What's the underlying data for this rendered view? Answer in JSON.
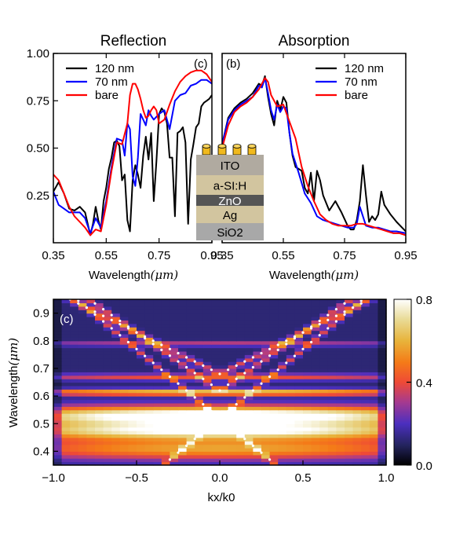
{
  "chart_data": [
    {
      "panel": "reflection",
      "type": "line",
      "title": "Reflection",
      "panel_label": "(c)",
      "xlabel": "Wavelength",
      "xlabel_unit": "(μm)",
      "xlim": [
        0.35,
        0.95
      ],
      "ylim": [
        0,
        1.0
      ],
      "xticks": [
        "0.35",
        "0.55",
        "0.75",
        "0.95"
      ],
      "yticks": [
        "0.25",
        "0.50",
        "0.75",
        "1.00"
      ],
      "ytick_values": [
        0.25,
        0.5,
        0.75,
        1.0
      ],
      "legend_position": "top-left",
      "series": [
        {
          "name": "120 nm",
          "color": "#000000",
          "x": [
            0.35,
            0.37,
            0.39,
            0.41,
            0.43,
            0.45,
            0.47,
            0.49,
            0.5,
            0.51,
            0.52,
            0.53,
            0.54,
            0.55,
            0.56,
            0.57,
            0.58,
            0.59,
            0.6,
            0.61,
            0.62,
            0.63,
            0.64,
            0.65,
            0.66,
            0.67,
            0.68,
            0.69,
            0.7,
            0.71,
            0.72,
            0.73,
            0.74,
            0.75,
            0.76,
            0.77,
            0.78,
            0.79,
            0.8,
            0.81,
            0.82,
            0.83,
            0.84,
            0.85,
            0.86,
            0.87,
            0.88,
            0.89,
            0.9,
            0.91,
            0.92,
            0.93,
            0.94,
            0.95
          ],
          "y": [
            0.27,
            0.32,
            0.26,
            0.18,
            0.17,
            0.19,
            0.16,
            0.04,
            0.1,
            0.19,
            0.12,
            0.07,
            0.22,
            0.29,
            0.39,
            0.45,
            0.53,
            0.54,
            0.51,
            0.33,
            0.36,
            0.12,
            0.06,
            0.33,
            0.41,
            0.36,
            0.29,
            0.46,
            0.56,
            0.44,
            0.58,
            0.22,
            0.43,
            0.68,
            0.71,
            0.69,
            0.63,
            0.45,
            0.45,
            0.14,
            0.58,
            0.59,
            0.61,
            0.53,
            0.1,
            0.44,
            0.52,
            0.61,
            0.63,
            0.72,
            0.74,
            0.75,
            0.76,
            0.78
          ]
        },
        {
          "name": "70 nm",
          "color": "#0000ff",
          "x": [
            0.35,
            0.37,
            0.39,
            0.41,
            0.43,
            0.45,
            0.47,
            0.49,
            0.51,
            0.53,
            0.55,
            0.57,
            0.59,
            0.61,
            0.62,
            0.63,
            0.64,
            0.65,
            0.66,
            0.67,
            0.68,
            0.69,
            0.7,
            0.71,
            0.72,
            0.73,
            0.75,
            0.77,
            0.79,
            0.81,
            0.83,
            0.85,
            0.87,
            0.89,
            0.91,
            0.93,
            0.95
          ],
          "y": [
            0.27,
            0.2,
            0.18,
            0.16,
            0.16,
            0.16,
            0.13,
            0.05,
            0.13,
            0.08,
            0.22,
            0.4,
            0.55,
            0.54,
            0.46,
            0.63,
            0.6,
            0.35,
            0.3,
            0.45,
            0.68,
            0.65,
            0.62,
            0.7,
            0.67,
            0.65,
            0.68,
            0.7,
            0.6,
            0.75,
            0.78,
            0.79,
            0.83,
            0.84,
            0.86,
            0.86,
            0.84
          ]
        },
        {
          "name": "bare",
          "color": "#ff0000",
          "x": [
            0.35,
            0.37,
            0.39,
            0.41,
            0.43,
            0.45,
            0.47,
            0.49,
            0.51,
            0.53,
            0.55,
            0.57,
            0.59,
            0.61,
            0.63,
            0.64,
            0.65,
            0.66,
            0.67,
            0.68,
            0.69,
            0.7,
            0.71,
            0.72,
            0.73,
            0.74,
            0.75,
            0.77,
            0.79,
            0.81,
            0.83,
            0.85,
            0.87,
            0.89,
            0.91,
            0.93,
            0.95
          ],
          "y": [
            0.36,
            0.33,
            0.26,
            0.19,
            0.14,
            0.11,
            0.08,
            0.04,
            0.07,
            0.06,
            0.2,
            0.38,
            0.53,
            0.52,
            0.63,
            0.78,
            0.84,
            0.84,
            0.81,
            0.76,
            0.7,
            0.66,
            0.67,
            0.7,
            0.72,
            0.7,
            0.63,
            0.65,
            0.73,
            0.8,
            0.85,
            0.88,
            0.9,
            0.91,
            0.91,
            0.89,
            0.85
          ]
        }
      ]
    },
    {
      "panel": "absorption",
      "type": "line",
      "title": "Absorption",
      "panel_label": "(b)",
      "xlabel": "Wavelength",
      "xlabel_unit": "(μm)",
      "xlim": [
        0.35,
        0.95
      ],
      "ylim": [
        0,
        1.0
      ],
      "xticks": [
        "0.35",
        "0.55",
        "0.75",
        "0.95"
      ],
      "legend_position": "top-right",
      "series": [
        {
          "name": "120 nm",
          "color": "#000000",
          "x": [
            0.35,
            0.37,
            0.39,
            0.41,
            0.43,
            0.45,
            0.47,
            0.48,
            0.49,
            0.5,
            0.51,
            0.52,
            0.53,
            0.54,
            0.55,
            0.56,
            0.57,
            0.58,
            0.59,
            0.6,
            0.61,
            0.62,
            0.63,
            0.64,
            0.65,
            0.66,
            0.67,
            0.68,
            0.7,
            0.72,
            0.74,
            0.76,
            0.77,
            0.78,
            0.79,
            0.8,
            0.81,
            0.82,
            0.83,
            0.84,
            0.85,
            0.86,
            0.87,
            0.88,
            0.9,
            0.92,
            0.95
          ],
          "y": [
            0.52,
            0.66,
            0.71,
            0.74,
            0.76,
            0.79,
            0.84,
            0.83,
            0.88,
            0.77,
            0.68,
            0.62,
            0.75,
            0.7,
            0.77,
            0.74,
            0.58,
            0.46,
            0.4,
            0.39,
            0.38,
            0.29,
            0.26,
            0.37,
            0.22,
            0.38,
            0.33,
            0.25,
            0.17,
            0.22,
            0.16,
            0.09,
            0.07,
            0.07,
            0.12,
            0.22,
            0.41,
            0.25,
            0.11,
            0.14,
            0.12,
            0.15,
            0.27,
            0.2,
            0.15,
            0.11,
            0.06
          ]
        },
        {
          "name": "70 nm",
          "color": "#0000ff",
          "x": [
            0.35,
            0.37,
            0.39,
            0.41,
            0.43,
            0.45,
            0.47,
            0.48,
            0.49,
            0.5,
            0.51,
            0.52,
            0.53,
            0.54,
            0.55,
            0.56,
            0.57,
            0.58,
            0.6,
            0.62,
            0.64,
            0.66,
            0.68,
            0.7,
            0.72,
            0.74,
            0.76,
            0.78,
            0.79,
            0.8,
            0.81,
            0.82,
            0.84,
            0.86,
            0.88,
            0.9,
            0.92,
            0.95
          ],
          "y": [
            0.52,
            0.65,
            0.7,
            0.73,
            0.75,
            0.77,
            0.83,
            0.82,
            0.87,
            0.79,
            0.7,
            0.65,
            0.73,
            0.69,
            0.72,
            0.71,
            0.58,
            0.47,
            0.37,
            0.26,
            0.21,
            0.14,
            0.12,
            0.11,
            0.1,
            0.09,
            0.08,
            0.08,
            0.1,
            0.19,
            0.14,
            0.09,
            0.08,
            0.08,
            0.07,
            0.06,
            0.06,
            0.05
          ]
        },
        {
          "name": "bare",
          "color": "#ff0000",
          "x": [
            0.35,
            0.37,
            0.39,
            0.41,
            0.43,
            0.45,
            0.47,
            0.49,
            0.5,
            0.51,
            0.53,
            0.55,
            0.57,
            0.59,
            0.61,
            0.63,
            0.65,
            0.67,
            0.69,
            0.71,
            0.73,
            0.75,
            0.77,
            0.79,
            0.81,
            0.83,
            0.85,
            0.87,
            0.89,
            0.91,
            0.93,
            0.95
          ],
          "y": [
            0.5,
            0.62,
            0.69,
            0.72,
            0.74,
            0.77,
            0.81,
            0.87,
            0.85,
            0.78,
            0.72,
            0.73,
            0.64,
            0.55,
            0.4,
            0.3,
            0.22,
            0.15,
            0.12,
            0.1,
            0.09,
            0.09,
            0.09,
            0.1,
            0.1,
            0.09,
            0.08,
            0.07,
            0.06,
            0.05,
            0.05,
            0.04
          ]
        }
      ]
    },
    {
      "panel": "dispersion",
      "type": "heatmap",
      "panel_label": "(c)",
      "xlabel": "kx/k0",
      "ylabel": "Wavelength",
      "ylabel_unit": "(μm)",
      "xlim": [
        -1.0,
        1.0
      ],
      "ylim": [
        0.35,
        0.95
      ],
      "xticks": [
        "−1.0",
        "−0.5",
        "0.0",
        "0.5",
        "1.0"
      ],
      "yticks": [
        "0.4",
        "0.5",
        "0.6",
        "0.7",
        "0.8",
        "0.9"
      ],
      "ytick_values": [
        0.4,
        0.5,
        0.6,
        0.7,
        0.8,
        0.9
      ],
      "colorbar": {
        "range": [
          0.0,
          0.8
        ],
        "ticks": [
          "0.0",
          "0.4",
          "0.8"
        ],
        "colormap": "CMRmap"
      },
      "bands": [
        {
          "wavelength": 0.53,
          "half_width": 0.035,
          "intensity": 0.8
        },
        {
          "wavelength": 0.475,
          "half_width": 0.03,
          "intensity": 0.65
        },
        {
          "wavelength": 0.41,
          "half_width": 0.04,
          "intensity": 0.45
        },
        {
          "wavelength": 0.615,
          "half_width": 0.012,
          "intensity": 0.55
        },
        {
          "wavelength": 0.67,
          "half_width": 0.012,
          "intensity": 0.3
        },
        {
          "wavelength": 0.79,
          "half_width": 0.008,
          "intensity": 0.25
        }
      ],
      "guided_modes": [
        {
          "lambda0": 0.52,
          "slope": 0.5
        },
        {
          "lambda0": 0.52,
          "slope": -0.5
        },
        {
          "lambda0": 0.62,
          "slope": 0.42
        },
        {
          "lambda0": 0.68,
          "slope": 0.3
        }
      ]
    }
  ],
  "inset": {
    "layers": [
      "ITO",
      "a-SI:H",
      "ZnO",
      "Ag",
      "SiO2"
    ],
    "layer_colors": [
      "#b0aaa0",
      "#d2c59f",
      "#555555",
      "#d2c59f",
      "#a8a8a8"
    ],
    "top_elements": "cylinders",
    "top_color": "#f0b91e"
  }
}
